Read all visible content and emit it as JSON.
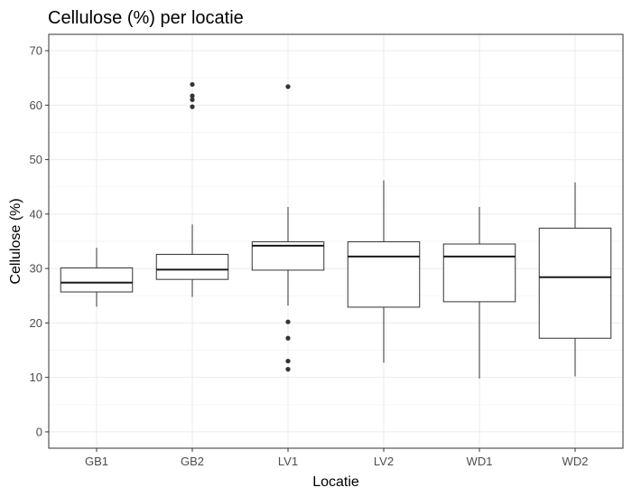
{
  "chart_data": {
    "type": "boxplot",
    "title": "Cellulose (%) per locatie",
    "xlabel": "Locatie",
    "ylabel": "Cellulose (%)",
    "ylim": [
      -3,
      73
    ],
    "yticks": [
      0,
      10,
      20,
      30,
      40,
      50,
      60,
      70
    ],
    "grid": true,
    "categories": [
      "GB1",
      "GB2",
      "LV1",
      "LV2",
      "WD1",
      "WD2"
    ],
    "boxes": [
      {
        "category": "GB1",
        "whisker_low": 23.0,
        "q1": 25.7,
        "median": 27.4,
        "q3": 30.1,
        "whisker_high": 33.8,
        "outliers": []
      },
      {
        "category": "GB2",
        "whisker_low": 24.8,
        "q1": 28.0,
        "median": 29.8,
        "q3": 32.6,
        "whisker_high": 38.1,
        "outliers": [
          63.8,
          61.7,
          61.0,
          59.7
        ]
      },
      {
        "category": "LV1",
        "whisker_low": 23.2,
        "q1": 29.7,
        "median": 34.2,
        "q3": 34.9,
        "whisker_high": 41.3,
        "outliers": [
          63.4,
          20.2,
          17.2,
          13.0,
          11.5
        ]
      },
      {
        "category": "LV2",
        "whisker_low": 12.7,
        "q1": 22.9,
        "median": 32.2,
        "q3": 34.9,
        "whisker_high": 46.2,
        "outliers": []
      },
      {
        "category": "WD1",
        "whisker_low": 9.8,
        "q1": 23.9,
        "median": 32.2,
        "q3": 34.5,
        "whisker_high": 41.3,
        "outliers": []
      },
      {
        "category": "WD2",
        "whisker_low": 10.2,
        "q1": 17.2,
        "median": 28.4,
        "q3": 37.4,
        "whisker_high": 45.8,
        "outliers": []
      }
    ]
  }
}
